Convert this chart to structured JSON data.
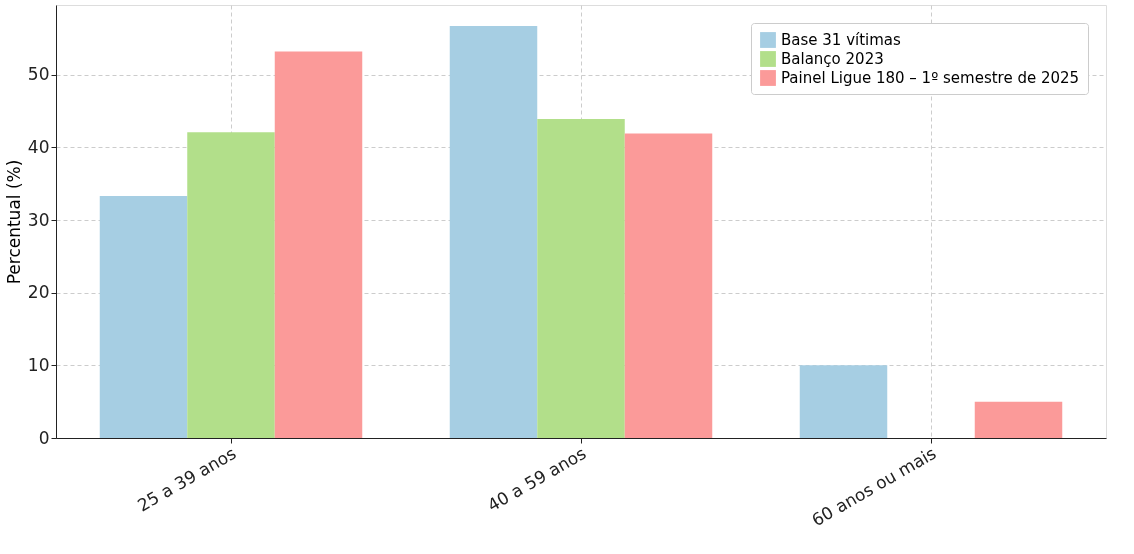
{
  "chart_data": {
    "type": "bar",
    "ylabel": "Percentual (%)",
    "categories": [
      "25 a 39 anos",
      "40 a 59 anos",
      "60 anos ou mais"
    ],
    "series": [
      {
        "name": "Base 31 vítimas",
        "color": "#a6cee3",
        "values": [
          33.3,
          56.7,
          10
        ]
      },
      {
        "name": "Balanço 2023",
        "color": "#b2df8a",
        "values": [
          42.1,
          43.9,
          0
        ]
      },
      {
        "name": "Painel Ligue 180 – 1º semestre de 2025",
        "color": "#fb9a99",
        "values": [
          53.2,
          41.9,
          5
        ]
      }
    ],
    "ylim": [
      0,
      59.6
    ],
    "yticks": [
      0,
      10,
      20,
      30,
      40,
      50
    ],
    "grid": true,
    "legend": "top right"
  }
}
